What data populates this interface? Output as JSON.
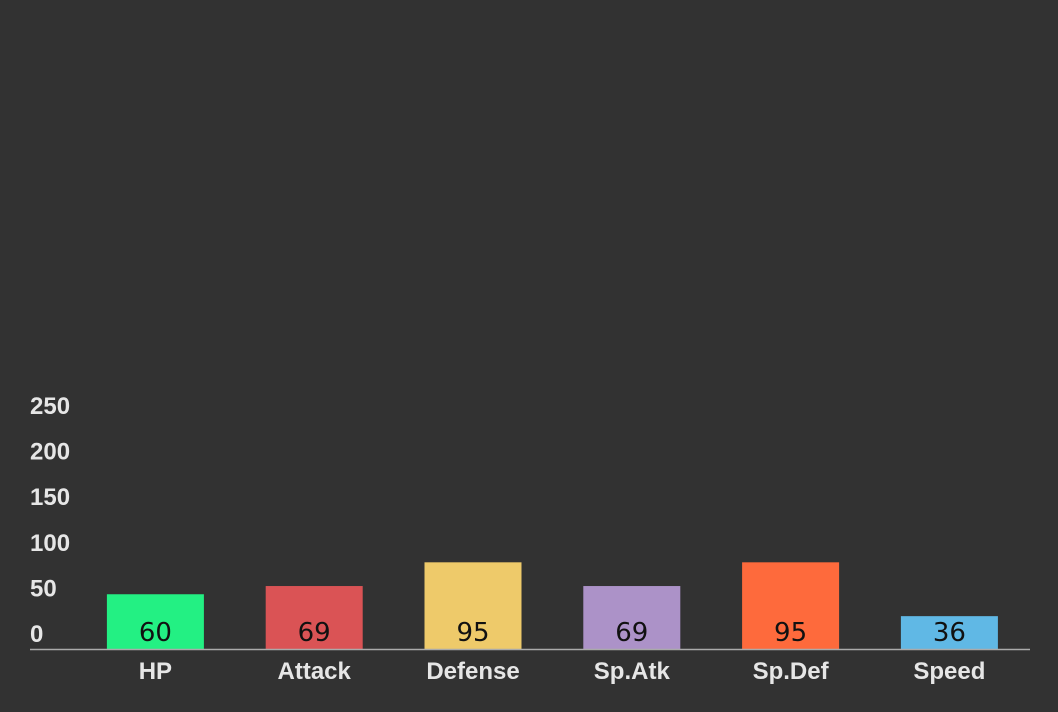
{
  "chart_data": {
    "type": "bar",
    "title": "",
    "xlabel": "",
    "ylabel": "",
    "categories": [
      "HP",
      "Attack",
      "Defense",
      "Sp.Atk",
      "Sp.Def",
      "Speed"
    ],
    "values": [
      60,
      69,
      95,
      69,
      95,
      36
    ],
    "value_labels": [
      "60",
      "69",
      "95",
      "69",
      "95",
      "36"
    ],
    "colors": [
      "#23f083",
      "#da5355",
      "#eeca6a",
      "#ac92c8",
      "#fe6a3c",
      "#60b8e5"
    ],
    "ylim": [
      0,
      260
    ],
    "yticks": [
      0,
      50,
      100,
      150,
      200,
      250
    ],
    "ytick_labels": [
      "0",
      "50",
      "100",
      "150",
      "200",
      "250"
    ],
    "grid": false,
    "legend": "none",
    "background": "#323232",
    "axis_color": "#aaaaaa",
    "tick_color": "#e6e6e6"
  }
}
